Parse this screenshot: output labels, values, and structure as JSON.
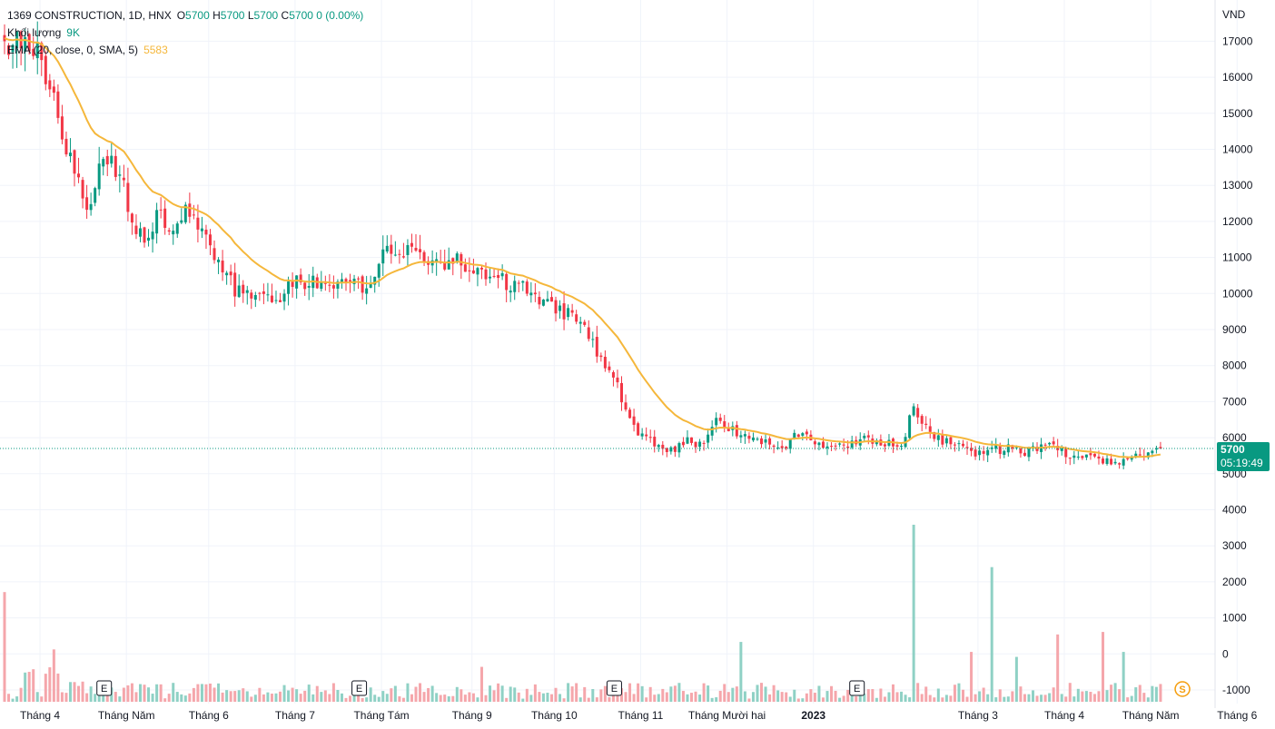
{
  "header": {
    "symbol": "1369 CONSTRUCTION, 1D, HNX",
    "open_label": "O",
    "open": "5700",
    "high_label": "H",
    "high": "5700",
    "low_label": "L",
    "low": "5700",
    "close_label": "C",
    "close": "5700",
    "change": "0 (0.00%)",
    "volume_label": "Khối lượng",
    "volume_value": "9K",
    "ma_label": "EMA (20, close, 0, SMA, 5)",
    "ma_value": "5583"
  },
  "price_axis": {
    "currency": "VND",
    "ticks": [
      17000,
      16000,
      15000,
      14000,
      13000,
      12000,
      11000,
      10000,
      9000,
      8000,
      7000,
      6000,
      5000,
      4000,
      3000,
      2000,
      1000,
      0,
      -1000
    ],
    "last_price": "5700",
    "countdown": "05:19:49"
  },
  "time_axis": {
    "labels": [
      {
        "text": "Tháng 4",
        "i": 2,
        "bold": false
      },
      {
        "text": "Tháng Năm",
        "i": 23,
        "bold": false
      },
      {
        "text": "Tháng 6",
        "i": 43,
        "bold": false
      },
      {
        "text": "Tháng 7",
        "i": 64,
        "bold": false
      },
      {
        "text": "Tháng Tám",
        "i": 85,
        "bold": false
      },
      {
        "text": "Tháng 9",
        "i": 107,
        "bold": false
      },
      {
        "text": "Tháng 10",
        "i": 127,
        "bold": false
      },
      {
        "text": "Tháng 11",
        "i": 148,
        "bold": false
      },
      {
        "text": "Tháng Mười hai",
        "i": 169,
        "bold": false
      },
      {
        "text": "2023",
        "i": 190,
        "bold": true
      },
      {
        "text": "Tháng 3",
        "i": 230,
        "bold": false
      },
      {
        "text": "Tháng 4",
        "i": 251,
        "bold": false
      },
      {
        "text": "Tháng Năm",
        "i": 272,
        "bold": false
      },
      {
        "text": "Tháng 6",
        "i": 293,
        "bold": false
      }
    ]
  },
  "markers": {
    "earnings": [
      {
        "label": "E",
        "i": 24
      },
      {
        "label": "E",
        "i": 86
      },
      {
        "label": "E",
        "i": 148
      },
      {
        "label": "E",
        "i": 207
      }
    ],
    "split": {
      "label": "S",
      "i": 285
    }
  },
  "colors": {
    "up": "#089981",
    "down": "#f23645",
    "vol_up": "#8fd1c5",
    "vol_down": "#f5a6ab",
    "ma": "#f5b73b",
    "grid": "#f0f3fa"
  },
  "chart_data": {
    "type": "candlestick",
    "last_price": 5700,
    "ma_last": 5583,
    "y_range": [
      -1000,
      17500
    ],
    "volume_scale_max": 3550,
    "anchors": [
      [
        0,
        17000
      ],
      [
        5,
        16900
      ],
      [
        8,
        16600
      ],
      [
        11,
        16000
      ],
      [
        14,
        14500
      ],
      [
        17,
        13300
      ],
      [
        20,
        12300
      ],
      [
        24,
        13800
      ],
      [
        28,
        13300
      ],
      [
        31,
        12000
      ],
      [
        34,
        11300
      ],
      [
        37,
        12300
      ],
      [
        40,
        11900
      ],
      [
        44,
        12200
      ],
      [
        48,
        11900
      ],
      [
        51,
        11200
      ],
      [
        54,
        10400
      ],
      [
        58,
        9900
      ],
      [
        62,
        9850
      ],
      [
        67,
        9900
      ],
      [
        72,
        10400
      ],
      [
        76,
        10300
      ],
      [
        80,
        10250
      ],
      [
        83,
        10300
      ],
      [
        86,
        10200
      ],
      [
        89,
        10300
      ],
      [
        92,
        11200
      ],
      [
        96,
        11300
      ],
      [
        99,
        11200
      ],
      [
        103,
        11000
      ],
      [
        107,
        10800
      ],
      [
        110,
        10900
      ],
      [
        114,
        10600
      ],
      [
        118,
        10500
      ],
      [
        122,
        10300
      ],
      [
        126,
        10100
      ],
      [
        130,
        9800
      ],
      [
        134,
        9600
      ],
      [
        138,
        9300
      ],
      [
        142,
        8800
      ],
      [
        145,
        8200
      ],
      [
        148,
        7800
      ],
      [
        151,
        6700
      ],
      [
        154,
        6200
      ],
      [
        158,
        5900
      ],
      [
        162,
        5600
      ],
      [
        166,
        5900
      ],
      [
        170,
        5800
      ],
      [
        173,
        6700
      ],
      [
        176,
        6200
      ],
      [
        180,
        6100
      ],
      [
        185,
        5900
      ],
      [
        189,
        5700
      ],
      [
        193,
        6100
      ],
      [
        197,
        5900
      ],
      [
        202,
        5800
      ],
      [
        206,
        5850
      ],
      [
        210,
        6000
      ],
      [
        214,
        5900
      ],
      [
        218,
        5800
      ],
      [
        221,
        6800
      ],
      [
        224,
        6300
      ],
      [
        228,
        5900
      ],
      [
        232,
        5800
      ],
      [
        236,
        5600
      ],
      [
        240,
        5650
      ],
      [
        244,
        5700
      ],
      [
        248,
        5600
      ],
      [
        252,
        5750
      ],
      [
        256,
        5700
      ],
      [
        260,
        5500
      ],
      [
        264,
        5400
      ],
      [
        268,
        5300
      ],
      [
        272,
        5350
      ],
      [
        276,
        5500
      ],
      [
        279,
        5700
      ],
      [
        281,
        5700
      ]
    ],
    "volume_spikes": [
      {
        "i": 0,
        "v": 2200
      },
      {
        "i": 12,
        "v": 1050
      },
      {
        "i": 116,
        "v": 700
      },
      {
        "i": 179,
        "v": 1200
      },
      {
        "i": 221,
        "v": 3550
      },
      {
        "i": 240,
        "v": 2700
      },
      {
        "i": 256,
        "v": 1350
      },
      {
        "i": 267,
        "v": 1400
      },
      {
        "i": 272,
        "v": 1000
      },
      {
        "i": 235,
        "v": 1000
      },
      {
        "i": 246,
        "v": 900
      }
    ]
  }
}
